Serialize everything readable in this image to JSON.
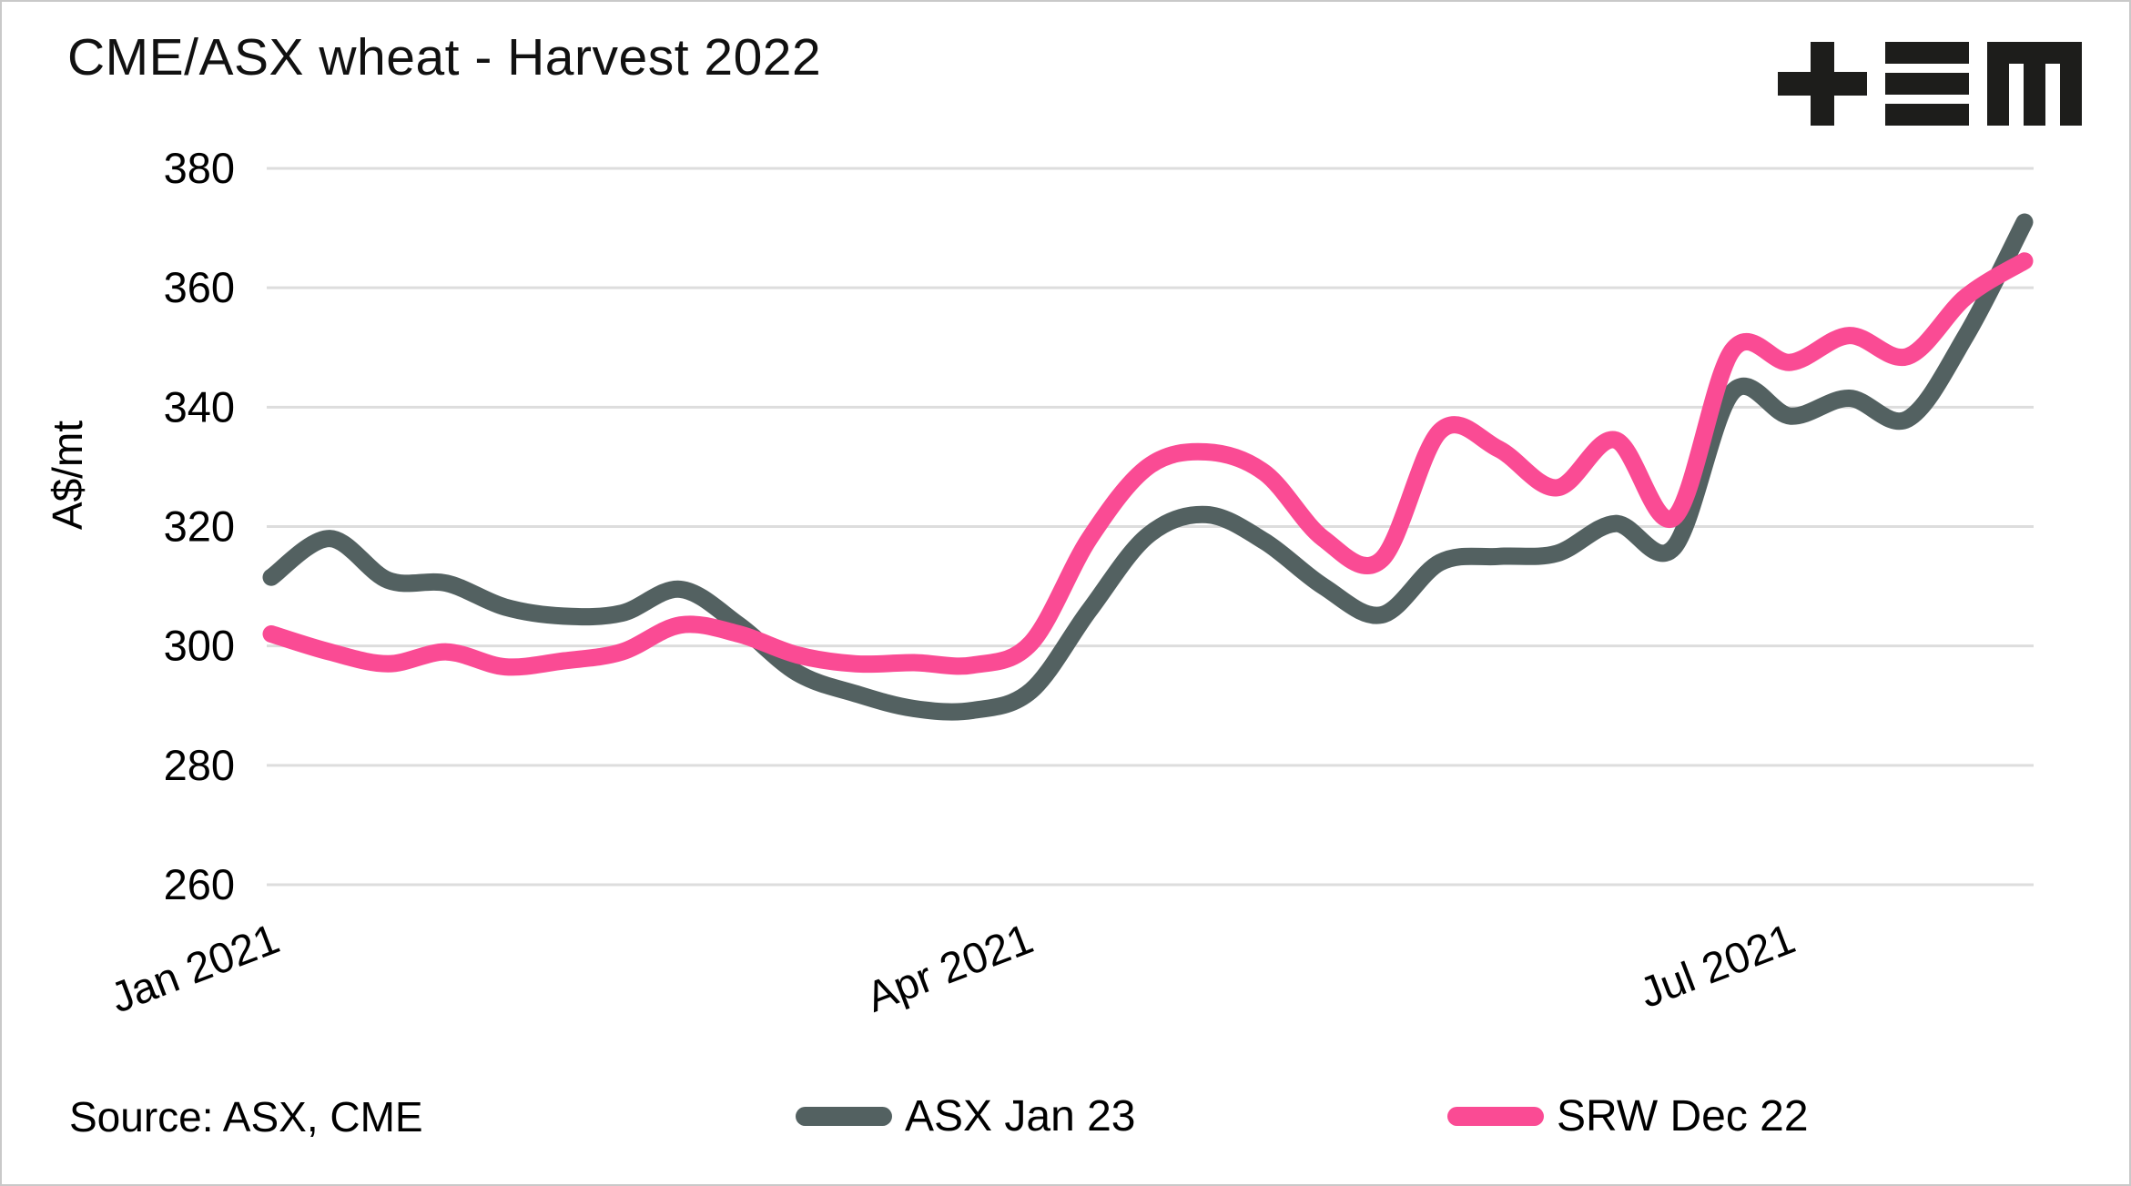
{
  "page": {
    "background": "#ffffff",
    "border_color": "#c9c9c9"
  },
  "header": {
    "title": "CME/ASX wheat - Harvest 2022",
    "logo": {
      "name": "tem-logo",
      "color": "#1d1d1b",
      "glyphs": [
        "plus",
        "triple-bar",
        "m"
      ]
    }
  },
  "chart_data": {
    "type": "line",
    "title": "CME/ASX wheat - Harvest 2022",
    "xlabel": "",
    "ylabel": "A$/mt",
    "ylim": [
      252,
      385
    ],
    "yticks": [
      260,
      280,
      300,
      320,
      340,
      360,
      380
    ],
    "xtick_labels": [
      "Jan 2021",
      "Apr 2021",
      "Jul 2021"
    ],
    "xtick_days": [
      0,
      90,
      181
    ],
    "x": [
      "Jan 1",
      "Jan 8",
      "Jan 15",
      "Jan 22",
      "Jan 29",
      "Feb 5",
      "Feb 12",
      "Feb 19",
      "Feb 26",
      "Mar 5",
      "Mar 12",
      "Mar 19",
      "Mar 26",
      "Apr 2",
      "Apr 9",
      "Apr 16",
      "Apr 23",
      "Apr 30",
      "May 7",
      "May 14",
      "May 21",
      "May 28",
      "Jun 4",
      "Jun 11",
      "Jun 18",
      "Jun 25",
      "Jul 2",
      "Jul 9",
      "Jul 16",
      "Jul 23",
      "Jul 30"
    ],
    "series": [
      {
        "name": "ASX Jan 23",
        "color": "#536161",
        "values": [
          311.5,
          318,
          311,
          310.5,
          306.5,
          305,
          305.5,
          309.5,
          303.5,
          295.5,
          292,
          289.5,
          289.2,
          292.5,
          306,
          318.5,
          322,
          317.5,
          310,
          305.2,
          314,
          315,
          315.5,
          320.5,
          316.5,
          342.5,
          338.5,
          341.5,
          338,
          352,
          371
        ]
      },
      {
        "name": "SRW Dec 22",
        "color": "#FA4B94",
        "values": [
          302,
          299,
          297,
          299,
          296.5,
          297.5,
          299,
          303.5,
          302,
          298.5,
          297,
          297.2,
          296.8,
          300.5,
          318,
          330,
          332.5,
          329,
          318,
          314.5,
          336,
          333,
          326.5,
          334.5,
          321.5,
          349.5,
          347.5,
          352,
          348.5,
          358.5,
          364.5
        ]
      }
    ],
    "grid": "horizontal-only",
    "legend_position": "bottom-center"
  },
  "legend": {
    "items": [
      {
        "label": "ASX Jan 23",
        "color": "#536161"
      },
      {
        "label": "SRW Dec 22",
        "color": "#FA4B94"
      }
    ]
  },
  "footer": {
    "source": "Source: ASX, CME"
  }
}
